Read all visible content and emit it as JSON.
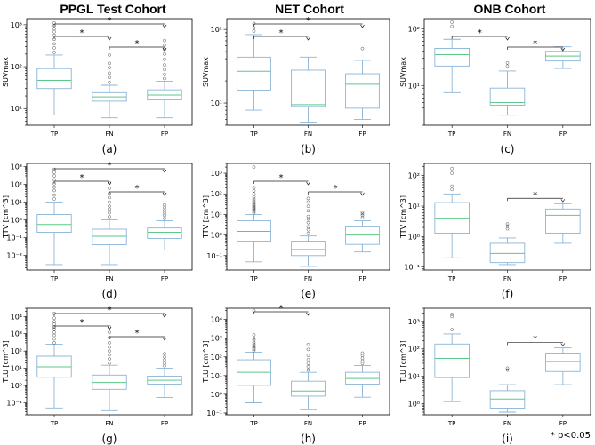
{
  "column_titles": [
    "PPGL Test Cohort",
    "NET Cohort",
    "ONB Cohort"
  ],
  "significance_note": "* p<0.05",
  "colors": {
    "box": "#8ab4d8",
    "median": "#5cc98a",
    "whisker": "#8ab4d8",
    "outlier": "#555555",
    "bracket": "#222222"
  },
  "chart_data": [
    {
      "panel_label": "(a)",
      "type": "box",
      "scale": "log",
      "ylabel": "SUVmax",
      "ylim": [
        4,
        1400
      ],
      "yticks": [
        10,
        100,
        1000
      ],
      "ytick_labels": [
        "10¹",
        "10²",
        "10³"
      ],
      "categories": [
        "TP",
        "FN",
        "FP"
      ],
      "boxes": [
        {
          "category": "TP",
          "whislo": 7,
          "q1": 30,
          "median": 47,
          "q3": 90,
          "whishi": 190,
          "fliers": [
            220,
            280,
            350,
            450,
            560,
            680,
            800,
            950,
            1100
          ]
        },
        {
          "category": "FN",
          "whislo": 6,
          "q1": 15,
          "median": 19,
          "q3": 24,
          "whishi": 36,
          "fliers": [
            42,
            55,
            70,
            95,
            120,
            190
          ]
        },
        {
          "category": "FP",
          "whislo": 6,
          "q1": 16,
          "median": 21,
          "q3": 28,
          "whishi": 45,
          "fliers": [
            52,
            65,
            85,
            110,
            150,
            200,
            260,
            330,
            420
          ]
        }
      ],
      "significance": [
        {
          "from": "TP",
          "to": "FP",
          "label": "*"
        },
        {
          "from": "TP",
          "to": "FN",
          "label": "*"
        },
        {
          "from": "FN",
          "to": "FP",
          "label": "*"
        }
      ]
    },
    {
      "panel_label": "(b)",
      "type": "box",
      "scale": "log",
      "ylabel": "SUVmax",
      "ylim": [
        5,
        140
      ],
      "yticks": [
        10,
        100
      ],
      "ytick_labels": [
        "10¹",
        "10²"
      ],
      "categories": [
        "TP",
        "FN",
        "FP"
      ],
      "boxes": [
        {
          "category": "TP",
          "whislo": 8,
          "q1": 15,
          "median": 27,
          "q3": 42,
          "whishi": 85,
          "fliers": [
            95,
            105,
            120
          ]
        },
        {
          "category": "FN",
          "whislo": 5.5,
          "q1": 9,
          "median": 9.5,
          "q3": 28,
          "whishi": 42,
          "fliers": []
        },
        {
          "category": "FP",
          "whislo": 6,
          "q1": 8.5,
          "median": 18,
          "q3": 25,
          "whishi": 38,
          "fliers": [
            55
          ]
        }
      ],
      "significance": [
        {
          "from": "TP",
          "to": "FP",
          "label": "*"
        },
        {
          "from": "TP",
          "to": "FN",
          "label": "*"
        }
      ]
    },
    {
      "panel_label": "(c)",
      "type": "box",
      "scale": "log",
      "ylabel": "SUVmax",
      "ylim": [
        2,
        150
      ],
      "yticks": [
        10,
        100
      ],
      "ytick_labels": [
        "10¹",
        "10²"
      ],
      "categories": [
        "TP",
        "FN",
        "FP"
      ],
      "boxes": [
        {
          "category": "TP",
          "whislo": 7.5,
          "q1": 22,
          "median": 35,
          "q3": 45,
          "whishi": 65,
          "fliers": [
            110,
            130
          ]
        },
        {
          "category": "FN",
          "whislo": 3,
          "q1": 4.5,
          "median": 5,
          "q3": 9,
          "whishi": 18,
          "fliers": [
            22,
            25
          ]
        },
        {
          "category": "FP",
          "whislo": 20,
          "q1": 27,
          "median": 33,
          "q3": 40,
          "whishi": 48,
          "fliers": []
        }
      ],
      "significance": [
        {
          "from": "TP",
          "to": "FN",
          "label": "*"
        },
        {
          "from": "FN",
          "to": "FP",
          "label": "*"
        }
      ]
    },
    {
      "panel_label": "(d)",
      "type": "box",
      "scale": "log",
      "ylabel": "TTV [cm^3]",
      "ylim": [
        0.0015,
        1500
      ],
      "yticks": [
        0.01,
        0.1,
        1,
        10,
        100,
        1000
      ],
      "ytick_labels": [
        "10⁻²",
        "10⁻¹",
        "10⁰",
        "10¹",
        "10²",
        "10³"
      ],
      "categories": [
        "TP",
        "FN",
        "FP"
      ],
      "boxes": [
        {
          "category": "TP",
          "whislo": 0.003,
          "q1": 0.2,
          "median": 0.55,
          "q3": 2,
          "whishi": 10,
          "fliers": [
            15,
            25,
            45,
            70,
            110,
            180,
            300,
            480,
            700
          ]
        },
        {
          "category": "FN",
          "whislo": 0.003,
          "q1": 0.04,
          "median": 0.12,
          "q3": 0.3,
          "whishi": 1,
          "fliers": [
            1.5,
            2.5,
            4,
            6,
            10,
            18,
            30,
            60,
            120
          ]
        },
        {
          "category": "FP",
          "whislo": 0.02,
          "q1": 0.09,
          "median": 0.2,
          "q3": 0.35,
          "whishi": 0.9,
          "fliers": [
            1.2,
            1.8,
            2.5,
            3.5,
            5,
            7
          ]
        }
      ],
      "significance": [
        {
          "from": "TP",
          "to": "FP",
          "label": "*"
        },
        {
          "from": "TP",
          "to": "FN",
          "label": "*"
        },
        {
          "from": "FN",
          "to": "FP",
          "label": "*"
        }
      ]
    },
    {
      "panel_label": "(e)",
      "type": "box",
      "scale": "log",
      "ylabel": "TTV [cm^3]",
      "ylim": [
        0.02,
        3000
      ],
      "yticks": [
        0.1,
        1,
        10,
        100,
        1000
      ],
      "ytick_labels": [
        "10⁻¹",
        "10⁰",
        "10¹",
        "10²",
        "10³"
      ],
      "categories": [
        "TP",
        "FN",
        "FP"
      ],
      "boxes": [
        {
          "category": "TP",
          "whislo": 0.05,
          "q1": 0.5,
          "median": 1.5,
          "q3": 5,
          "whishi": 10,
          "fliers": [
            12,
            14,
            16,
            18,
            20,
            22,
            25,
            28,
            32,
            38,
            45,
            55,
            70,
            100,
            140,
            200,
            2000
          ]
        },
        {
          "category": "FN",
          "whislo": 0.03,
          "q1": 0.1,
          "median": 0.2,
          "q3": 0.5,
          "whishi": 0.9,
          "fliers": [
            1.2,
            1.8,
            2.5,
            4,
            6,
            8,
            15,
            25,
            40,
            60
          ]
        },
        {
          "category": "FP",
          "whislo": 0.15,
          "q1": 0.35,
          "median": 1,
          "q3": 2.5,
          "whishi": 5,
          "fliers": [
            7,
            9,
            11,
            13
          ]
        }
      ],
      "significance": [
        {
          "from": "TP",
          "to": "FN",
          "label": "*"
        },
        {
          "from": "FN",
          "to": "FP",
          "label": "*"
        }
      ]
    },
    {
      "panel_label": "(f)",
      "type": "box",
      "scale": "log",
      "ylabel": "TTV [cm^3]",
      "ylim": [
        0.08,
        250
      ],
      "yticks": [
        0.1,
        1,
        10,
        100
      ],
      "ytick_labels": [
        "10⁻¹",
        "10⁰",
        "10¹",
        "10²"
      ],
      "categories": [
        "TP",
        "FN",
        "FP"
      ],
      "boxes": [
        {
          "category": "TP",
          "whislo": 0.2,
          "q1": 1.3,
          "median": 4,
          "q3": 13,
          "whishi": 25,
          "fliers": [
            35,
            45,
            120,
            170
          ]
        },
        {
          "category": "FN",
          "whislo": 0.12,
          "q1": 0.14,
          "median": 0.28,
          "q3": 0.6,
          "whishi": 0.9,
          "fliers": [
            1.8,
            2.2,
            2.6
          ]
        },
        {
          "category": "FP",
          "whislo": 0.6,
          "q1": 1.3,
          "median": 5,
          "q3": 8,
          "whishi": 12,
          "fliers": []
        }
      ],
      "significance": [
        {
          "from": "FN",
          "to": "FP",
          "label": "*"
        }
      ]
    },
    {
      "panel_label": "(g)",
      "type": "box",
      "scale": "log",
      "ylabel": "TLU [cm^3]",
      "ylim": [
        0.02,
        30000
      ],
      "yticks": [
        0.1,
        1,
        10,
        100,
        1000,
        10000
      ],
      "ytick_labels": [
        "10⁻¹",
        "10⁰",
        "10¹",
        "10²",
        "10³",
        "10⁴"
      ],
      "categories": [
        "TP",
        "FN",
        "FP"
      ],
      "boxes": [
        {
          "category": "TP",
          "whislo": 0.05,
          "q1": 3,
          "median": 12,
          "q3": 50,
          "whishi": 250,
          "fliers": [
            300,
            500,
            800,
            1200,
            1800,
            2500,
            3500,
            5000,
            8000,
            15000
          ]
        },
        {
          "category": "FN",
          "whislo": 0.035,
          "q1": 0.6,
          "median": 1.5,
          "q3": 4,
          "whishi": 15,
          "fliers": [
            20,
            35,
            60,
            100,
            170,
            300,
            600,
            1200,
            2500
          ]
        },
        {
          "category": "FP",
          "whislo": 0.2,
          "q1": 1.2,
          "median": 2,
          "q3": 3.5,
          "whishi": 10,
          "fliers": [
            14,
            20,
            30,
            45,
            70
          ]
        }
      ],
      "significance": [
        {
          "from": "TP",
          "to": "FP",
          "label": "*"
        },
        {
          "from": "TP",
          "to": "FN",
          "label": "*"
        },
        {
          "from": "FN",
          "to": "FP",
          "label": "*"
        }
      ]
    },
    {
      "panel_label": "(h)",
      "type": "box",
      "scale": "log",
      "ylabel": "TLU [cm^3]",
      "ylim": [
        0.08,
        40000
      ],
      "yticks": [
        0.1,
        1,
        10,
        100,
        1000,
        10000
      ],
      "ytick_labels": [
        "10⁻¹",
        "10⁰",
        "10¹",
        "10²",
        "10³",
        "10⁴"
      ],
      "categories": [
        "TP",
        "FN",
        "FP"
      ],
      "boxes": [
        {
          "category": "TP",
          "whislo": 0.35,
          "q1": 3,
          "median": 15,
          "q3": 70,
          "whishi": 180,
          "fliers": [
            220,
            260,
            300,
            350,
            400,
            480,
            600,
            800,
            1000,
            1500,
            30000
          ]
        },
        {
          "category": "FN",
          "whislo": 0.15,
          "q1": 0.8,
          "median": 1.5,
          "q3": 5,
          "whishi": 15,
          "fliers": [
            20,
            30,
            45,
            70,
            120,
            250,
            450
          ]
        },
        {
          "category": "FP",
          "whislo": 0.7,
          "q1": 3.5,
          "median": 7,
          "q3": 15,
          "whishi": 35,
          "fliers": [
            45,
            60,
            85,
            120,
            160
          ]
        }
      ],
      "significance": [
        {
          "from": "TP",
          "to": "FN",
          "label": "*"
        }
      ]
    },
    {
      "panel_label": "(i)",
      "type": "box",
      "scale": "log",
      "ylabel": "TLU [cm^3]",
      "ylim": [
        0.4,
        3000
      ],
      "yticks": [
        1,
        10,
        100,
        1000
      ],
      "ytick_labels": [
        "10⁰",
        "10¹",
        "10²",
        "10³"
      ],
      "categories": [
        "TP",
        "FN",
        "FP"
      ],
      "boxes": [
        {
          "category": "TP",
          "whislo": 1.2,
          "q1": 9,
          "median": 45,
          "q3": 150,
          "whishi": 350,
          "fliers": [
            500,
            1500,
            1800
          ]
        },
        {
          "category": "FN",
          "whislo": 0.5,
          "q1": 0.7,
          "median": 1.5,
          "q3": 3,
          "whishi": 5,
          "fliers": [
            17,
            20
          ]
        },
        {
          "category": "FP",
          "whislo": 5,
          "q1": 15,
          "median": 35,
          "q3": 70,
          "whishi": 110,
          "fliers": []
        }
      ],
      "significance": [
        {
          "from": "FN",
          "to": "FP",
          "label": "*"
        }
      ]
    }
  ]
}
